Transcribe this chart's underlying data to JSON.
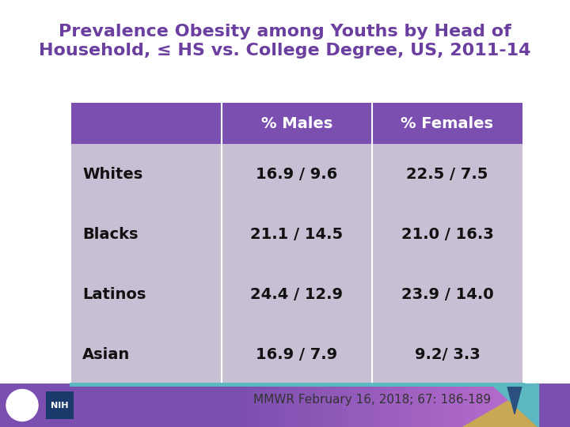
{
  "title_line1": "Prevalence Obesity among Youths by Head of",
  "title_line2": "Household, ≤ HS vs. College Degree, US, 2011-14",
  "title_color": "#6B3FA0",
  "title_fontsize": 16,
  "header_bg": "#7B4FAF",
  "header_text_color": "#FFFFFF",
  "header_cols": [
    "% Males",
    "% Females"
  ],
  "row_labels": [
    "Whites",
    "Blacks",
    "Latinos",
    "Asian"
  ],
  "row_data": [
    [
      "16.9 / 9.6",
      "22.5 / 7.5"
    ],
    [
      "21.1 / 14.5",
      "21.0 / 16.3"
    ],
    [
      "24.4 / 12.9",
      "23.9 / 14.0"
    ],
    [
      "16.9 / 7.9",
      "9.2/ 3.3"
    ]
  ],
  "row_bg": "#C8BFD4",
  "row_label_fontsize": 14,
  "cell_fontsize": 14,
  "header_fontsize": 14,
  "citation": "MMWR February 16, 2018; 67: 186-189",
  "citation_fontsize": 11,
  "footer_bg_left": "#7B4FAF",
  "footer_bg_right": "#9B6FBF",
  "bg_color": "#FFFFFF",
  "bottom_line_color": "#5BB8C1",
  "gold_color": "#C8A855",
  "teal_color": "#5BB8C1",
  "teal_v_color": "#5BB8C1"
}
